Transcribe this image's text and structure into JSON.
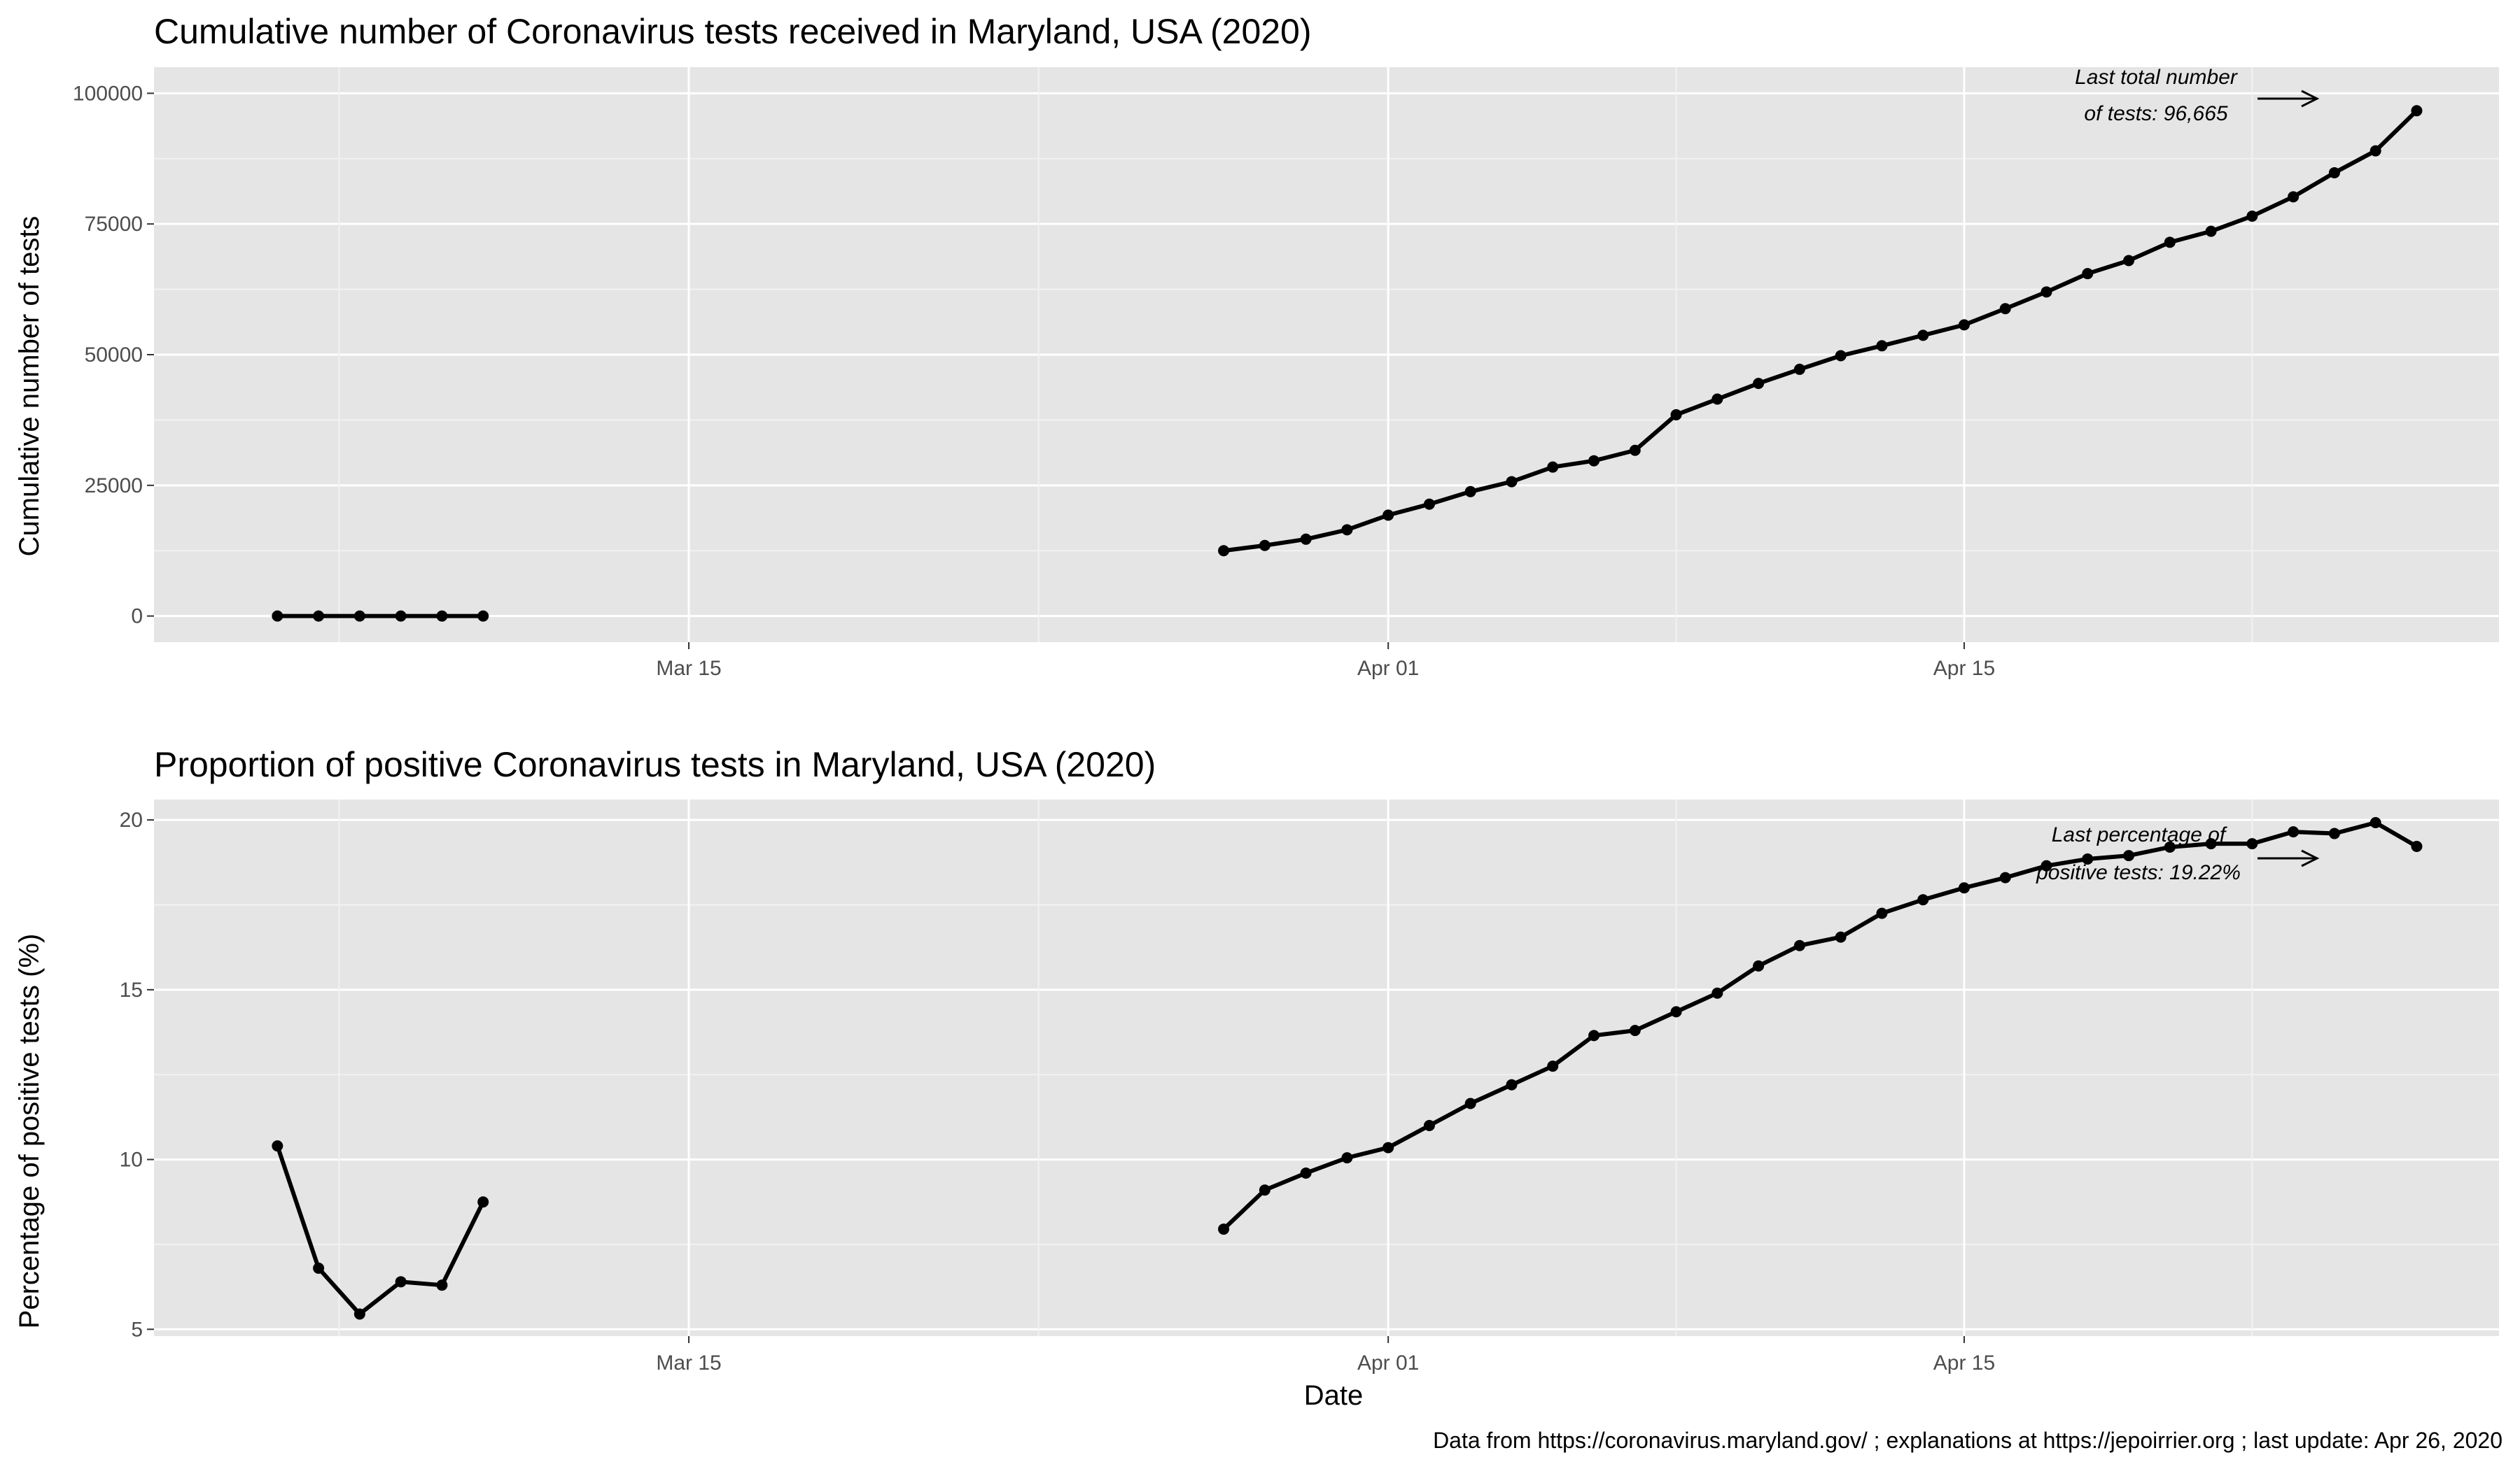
{
  "caption": "Data from https://coronavirus.maryland.gov/ ; explanations at https://jepoirrier.org ; last update: Apr 26, 2020",
  "chart_data": [
    {
      "type": "line",
      "title": "Cumulative number of Coronavirus tests received in Maryland, USA (2020)",
      "xlabel": "",
      "ylabel": "Cumulative number of tests",
      "x_tick_labels": [
        "Mar 15",
        "Apr 01",
        "Apr 15"
      ],
      "y_tick_labels": [
        "0",
        "25000",
        "50000",
        "75000",
        "100000"
      ],
      "ylim": [
        -5000,
        105000
      ],
      "annotation": [
        "Last total number",
        "of tests: 96,665"
      ],
      "series": [
        {
          "points": [
            {
              "x": "2020-03-05",
              "y": 0
            },
            {
              "x": "2020-03-06",
              "y": 0
            },
            {
              "x": "2020-03-07",
              "y": 0
            },
            {
              "x": "2020-03-08",
              "y": 0
            },
            {
              "x": "2020-03-09",
              "y": 0
            },
            {
              "x": "2020-03-10",
              "y": 0
            }
          ]
        },
        {
          "points": [
            {
              "x": "2020-03-28",
              "y": 12500
            },
            {
              "x": "2020-03-29",
              "y": 13500
            },
            {
              "x": "2020-03-30",
              "y": 14700
            },
            {
              "x": "2020-03-31",
              "y": 16500
            },
            {
              "x": "2020-04-01",
              "y": 19300
            },
            {
              "x": "2020-04-02",
              "y": 21400
            },
            {
              "x": "2020-04-03",
              "y": 23800
            },
            {
              "x": "2020-04-04",
              "y": 25700
            },
            {
              "x": "2020-04-05",
              "y": 28500
            },
            {
              "x": "2020-04-06",
              "y": 29700
            },
            {
              "x": "2020-04-07",
              "y": 31700
            },
            {
              "x": "2020-04-08",
              "y": 38500
            },
            {
              "x": "2020-04-09",
              "y": 41500
            },
            {
              "x": "2020-04-10",
              "y": 44500
            },
            {
              "x": "2020-04-11",
              "y": 47200
            },
            {
              "x": "2020-04-12",
              "y": 49800
            },
            {
              "x": "2020-04-13",
              "y": 51700
            },
            {
              "x": "2020-04-14",
              "y": 53700
            },
            {
              "x": "2020-04-15",
              "y": 55700
            },
            {
              "x": "2020-04-16",
              "y": 58800
            },
            {
              "x": "2020-04-17",
              "y": 62000
            },
            {
              "x": "2020-04-18",
              "y": 65500
            },
            {
              "x": "2020-04-19",
              "y": 68000
            },
            {
              "x": "2020-04-20",
              "y": 71500
            },
            {
              "x": "2020-04-21",
              "y": 73600
            },
            {
              "x": "2020-04-22",
              "y": 76500
            },
            {
              "x": "2020-04-23",
              "y": 80200
            },
            {
              "x": "2020-04-24",
              "y": 84800
            },
            {
              "x": "2020-04-25",
              "y": 89000
            },
            {
              "x": "2020-04-26",
              "y": 96665
            }
          ]
        }
      ]
    },
    {
      "type": "line",
      "title": "Proportion of positive Coronavirus tests in Maryland, USA (2020)",
      "xlabel": "Date",
      "ylabel": "Percentage of positive tests (%)",
      "x_tick_labels": [
        "Mar 15",
        "Apr 01",
        "Apr 15"
      ],
      "y_tick_labels": [
        "5",
        "10",
        "15",
        "20"
      ],
      "ylim": [
        4.8,
        20.6
      ],
      "annotation": [
        "Last percentage of",
        "positive tests: 19.22%"
      ],
      "series": [
        {
          "points": [
            {
              "x": "2020-03-05",
              "y": 10.4
            },
            {
              "x": "2020-03-06",
              "y": 6.8
            },
            {
              "x": "2020-03-07",
              "y": 5.45
            },
            {
              "x": "2020-03-08",
              "y": 6.4
            },
            {
              "x": "2020-03-09",
              "y": 6.3
            },
            {
              "x": "2020-03-10",
              "y": 8.75
            }
          ]
        },
        {
          "points": [
            {
              "x": "2020-03-28",
              "y": 7.95
            },
            {
              "x": "2020-03-29",
              "y": 9.1
            },
            {
              "x": "2020-03-30",
              "y": 9.6
            },
            {
              "x": "2020-03-31",
              "y": 10.05
            },
            {
              "x": "2020-04-01",
              "y": 10.35
            },
            {
              "x": "2020-04-02",
              "y": 11.0
            },
            {
              "x": "2020-04-03",
              "y": 11.65
            },
            {
              "x": "2020-04-04",
              "y": 12.2
            },
            {
              "x": "2020-04-05",
              "y": 12.75
            },
            {
              "x": "2020-04-06",
              "y": 13.65
            },
            {
              "x": "2020-04-07",
              "y": 13.8
            },
            {
              "x": "2020-04-08",
              "y": 14.35
            },
            {
              "x": "2020-04-09",
              "y": 14.9
            },
            {
              "x": "2020-04-10",
              "y": 15.7
            },
            {
              "x": "2020-04-11",
              "y": 16.3
            },
            {
              "x": "2020-04-12",
              "y": 16.55
            },
            {
              "x": "2020-04-13",
              "y": 17.25
            },
            {
              "x": "2020-04-14",
              "y": 17.65
            },
            {
              "x": "2020-04-15",
              "y": 18.0
            },
            {
              "x": "2020-04-16",
              "y": 18.3
            },
            {
              "x": "2020-04-17",
              "y": 18.65
            },
            {
              "x": "2020-04-18",
              "y": 18.85
            },
            {
              "x": "2020-04-19",
              "y": 18.95
            },
            {
              "x": "2020-04-20",
              "y": 19.2
            },
            {
              "x": "2020-04-21",
              "y": 19.3
            },
            {
              "x": "2020-04-22",
              "y": 19.3
            },
            {
              "x": "2020-04-23",
              "y": 19.65
            },
            {
              "x": "2020-04-24",
              "y": 19.6
            },
            {
              "x": "2020-04-25",
              "y": 19.92
            },
            {
              "x": "2020-04-26",
              "y": 19.22
            }
          ]
        }
      ]
    }
  ]
}
